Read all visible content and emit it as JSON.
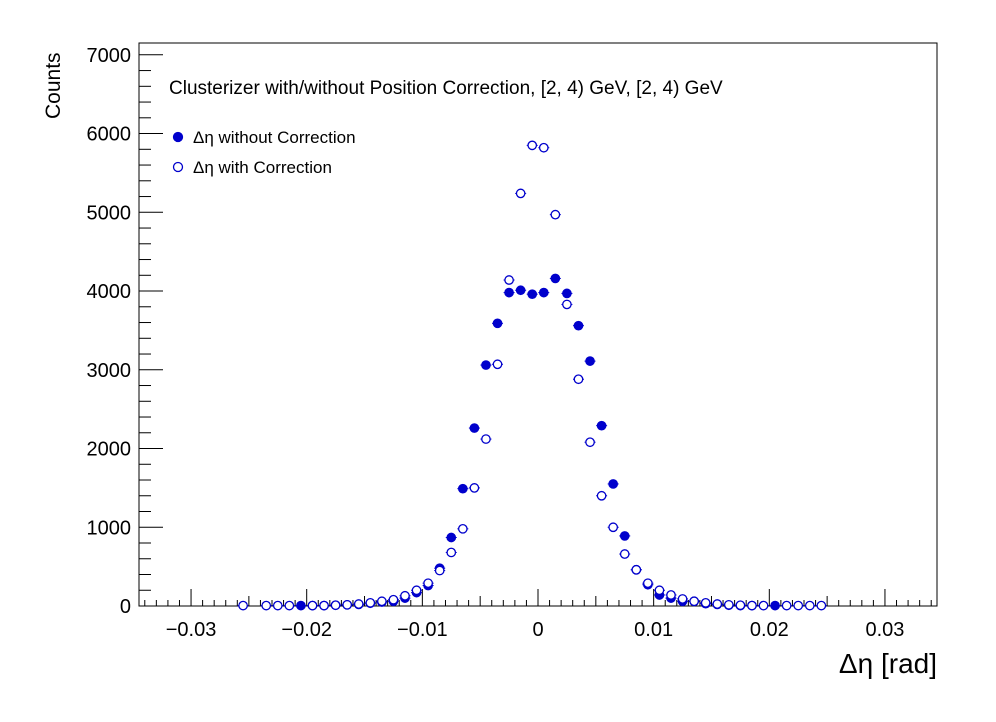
{
  "chart_data": {
    "type": "scatter",
    "title": "Clusterizer with/without Position Correction, [2, 4) GeV, [2, 4) GeV",
    "xlabel": "Δη  [rad]",
    "ylabel": "Counts",
    "xlim": [
      -0.0345,
      0.0345
    ],
    "ylim": [
      0,
      7150
    ],
    "x_ticks": [
      -0.03,
      -0.02,
      -0.01,
      0,
      0.01,
      0.02,
      0.03
    ],
    "x_tick_labels": [
      "−0.03",
      "−0.02",
      "−0.01",
      "0",
      "0.01",
      "0.02",
      "0.03"
    ],
    "y_ticks": [
      0,
      1000,
      2000,
      3000,
      4000,
      5000,
      6000,
      7000
    ],
    "y_tick_labels": [
      "0",
      "1000",
      "2000",
      "3000",
      "4000",
      "5000",
      "6000",
      "7000"
    ],
    "legend_position": "top-left",
    "series": [
      {
        "name": "Δη without Correction",
        "marker": "filled-circle",
        "color": "#0000cc",
        "x": [
          -0.0205,
          -0.0195,
          -0.0185,
          -0.0175,
          -0.0165,
          -0.0155,
          -0.0145,
          -0.0135,
          -0.0125,
          -0.0115,
          -0.0105,
          -0.0095,
          -0.0085,
          -0.0075,
          -0.0065,
          -0.0055,
          -0.0045,
          -0.0035,
          -0.0025,
          -0.0015,
          -0.0005,
          0.0005,
          0.0015,
          0.0025,
          0.0035,
          0.0045,
          0.0055,
          0.0065,
          0.0075,
          0.0085,
          0.0095,
          0.0105,
          0.0115,
          0.0125,
          0.0135,
          0.0145,
          0.0155,
          0.0165,
          0.0175,
          0.0185,
          0.0205
        ],
        "y": [
          5,
          5,
          5,
          10,
          15,
          20,
          35,
          50,
          60,
          100,
          170,
          260,
          480,
          870,
          1490,
          2260,
          3060,
          3590,
          3980,
          4010,
          3960,
          3980,
          4160,
          3970,
          3560,
          3110,
          2290,
          1550,
          890,
          460,
          270,
          140,
          100,
          60,
          60,
          30,
          20,
          10,
          5,
          5,
          5
        ]
      },
      {
        "name": "Δη with Correction",
        "marker": "open-circle",
        "color": "#0000cc",
        "x": [
          -0.0255,
          -0.0235,
          -0.0225,
          -0.0215,
          -0.0195,
          -0.0185,
          -0.0175,
          -0.0165,
          -0.0155,
          -0.0145,
          -0.0135,
          -0.0125,
          -0.0115,
          -0.0105,
          -0.0095,
          -0.0085,
          -0.0075,
          -0.0065,
          -0.0055,
          -0.0045,
          -0.0035,
          -0.0025,
          -0.0015,
          -0.0005,
          0.0005,
          0.0015,
          0.0025,
          0.0035,
          0.0045,
          0.0055,
          0.0065,
          0.0075,
          0.0085,
          0.0095,
          0.0105,
          0.0115,
          0.0125,
          0.0135,
          0.0145,
          0.0155,
          0.0165,
          0.0175,
          0.0185,
          0.0195,
          0.0215,
          0.0225,
          0.0235,
          0.0245
        ],
        "y": [
          5,
          5,
          5,
          5,
          5,
          5,
          10,
          15,
          25,
          40,
          60,
          80,
          130,
          200,
          290,
          450,
          680,
          980,
          1500,
          2120,
          3070,
          4140,
          5240,
          5850,
          5820,
          4970,
          3830,
          2880,
          2080,
          1400,
          1000,
          660,
          460,
          290,
          200,
          140,
          90,
          60,
          40,
          25,
          15,
          10,
          5,
          5,
          5,
          5,
          5,
          5
        ]
      }
    ]
  }
}
